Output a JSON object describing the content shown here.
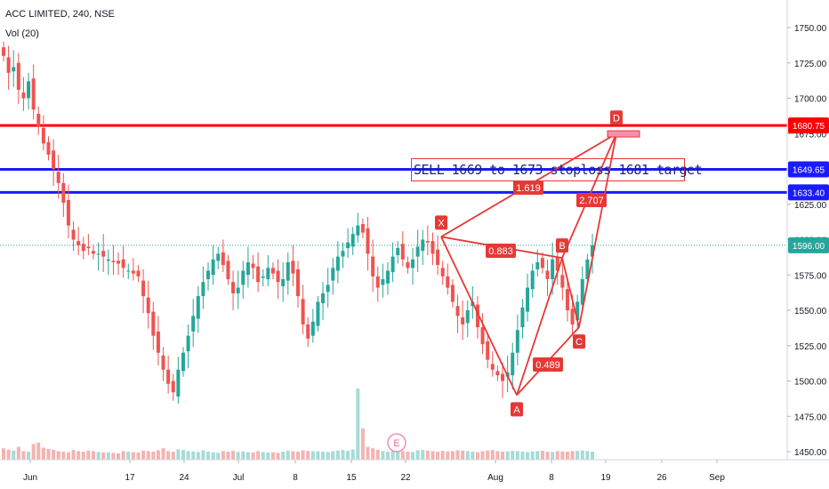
{
  "header": {
    "title": "ACC LIMITED, 240, NSE",
    "volume_indicator": "Vol (20)"
  },
  "annotation": {
    "text": "SELL 1669 to 1673 stoploss 1681 target"
  },
  "event_marker": "E",
  "colors": {
    "up": "#26a69a",
    "down": "#ef5350",
    "red_line": "#ff0000",
    "blue_line": "#1a1aff",
    "pattern": "#e53935",
    "last_price_line": "#26a69a"
  },
  "chart_data": {
    "type": "candlestick",
    "ylim": [
      1440,
      1765
    ],
    "y_ticks": [
      "1750.00",
      "1725.00",
      "1700.00",
      "1675.00",
      "1650.00",
      "1625.00",
      "1600.00",
      "1575.00",
      "1550.00",
      "1525.00",
      "1500.00",
      "1475.00",
      "1450.00"
    ],
    "x_ticks": [
      "Jun",
      "17",
      "24",
      "Jul",
      "8",
      "15",
      "22",
      "Aug",
      "8",
      "19",
      "26",
      "Sep"
    ],
    "price_levels": [
      {
        "label": "1680.75",
        "value": 1680.75,
        "color": "#ff0000"
      },
      {
        "label": "1649.65",
        "value": 1649.65,
        "color": "#1a1aff"
      },
      {
        "label": "1633.40",
        "value": 1633.4,
        "color": "#1a1aff"
      },
      {
        "label": "1596.00",
        "value": 1596.0,
        "color": "#26a69a"
      }
    ],
    "harmonic_pattern": {
      "points": [
        {
          "label": "X",
          "value": 1602
        },
        {
          "label": "A",
          "value": 1490
        },
        {
          "label": "B",
          "value": 1587
        },
        {
          "label": "C",
          "value": 1538
        },
        {
          "label": "D",
          "value": 1675
        }
      ],
      "ratios": [
        "0.883",
        "0.489",
        "1.619",
        "2.707"
      ]
    },
    "closes": [
      1730,
      1718,
      1722,
      1706,
      1700,
      1712,
      1692,
      1680,
      1668,
      1660,
      1650,
      1640,
      1626,
      1610,
      1600,
      1596,
      1592,
      1594,
      1590,
      1590,
      1588,
      1586,
      1584,
      1583,
      1580,
      1578,
      1576,
      1574,
      1560,
      1548,
      1532,
      1520,
      1508,
      1498,
      1492,
      1508,
      1520,
      1532,
      1546,
      1560,
      1570,
      1578,
      1586,
      1590,
      1582,
      1572,
      1562,
      1566,
      1578,
      1584,
      1580,
      1570,
      1574,
      1580,
      1576,
      1570,
      1572,
      1584,
      1576,
      1560,
      1540,
      1530,
      1542,
      1556,
      1562,
      1568,
      1580,
      1588,
      1592,
      1598,
      1604,
      1610,
      1605,
      1590,
      1574,
      1566,
      1572,
      1578,
      1588,
      1594,
      1586,
      1580,
      1586,
      1595,
      1600,
      1598,
      1590,
      1582,
      1574,
      1566,
      1556,
      1546,
      1540,
      1550,
      1556,
      1538,
      1526,
      1515,
      1508,
      1504,
      1500,
      1506,
      1520,
      1536,
      1552,
      1566,
      1578,
      1584,
      1580,
      1572,
      1586,
      1578,
      1566,
      1550,
      1540,
      1556,
      1572,
      1586,
      1596
    ],
    "volumes": [
      40,
      35,
      32,
      45,
      30,
      28,
      55,
      60,
      42,
      38,
      35,
      30,
      28,
      26,
      34,
      30,
      28,
      32,
      30,
      27,
      25,
      26,
      24,
      22,
      30,
      28,
      26,
      25,
      32,
      30,
      28,
      33,
      40,
      30,
      28,
      36,
      34,
      30,
      29,
      27,
      33,
      28,
      26,
      24,
      30,
      28,
      31,
      27,
      29,
      26,
      25,
      30,
      27,
      25,
      26,
      24,
      28,
      32,
      30,
      28,
      33,
      31,
      30,
      29,
      28,
      27,
      30,
      32,
      34,
      31,
      36,
      250,
      110,
      45,
      40,
      35,
      30,
      28,
      30,
      32,
      30,
      28,
      27,
      33,
      34,
      32,
      30,
      28,
      31,
      29,
      30,
      33,
      32,
      30,
      28,
      26,
      30,
      32,
      34,
      30,
      28,
      29,
      31,
      30,
      28,
      27,
      29,
      30,
      31,
      28,
      27,
      30,
      29,
      28,
      30,
      31,
      32,
      30,
      28
    ]
  }
}
